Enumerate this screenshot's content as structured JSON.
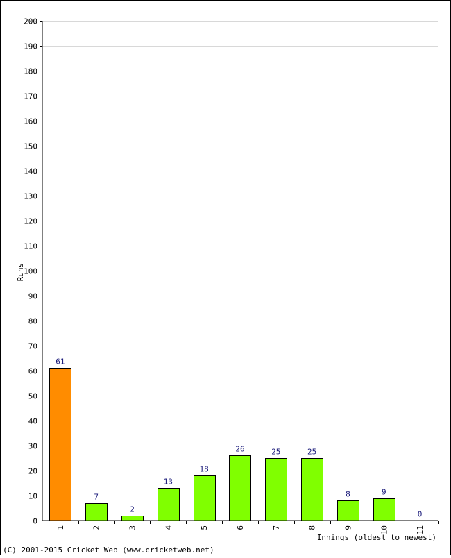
{
  "chart_data": {
    "type": "bar",
    "title": "",
    "xlabel": "Innings (oldest to newest)",
    "ylabel": "Runs",
    "ylim": [
      0,
      200
    ],
    "ytick_step": 10,
    "grid": true,
    "categories": [
      "1",
      "2",
      "3",
      "4",
      "5",
      "6",
      "7",
      "8",
      "9",
      "10",
      "11"
    ],
    "values": [
      61,
      7,
      2,
      13,
      18,
      26,
      25,
      25,
      8,
      9,
      0
    ],
    "highlight_index": 0,
    "colors": {
      "highlight": "#ff8c00",
      "bar": "#80ff00",
      "bar_border": "#000000",
      "grid": "#d8d8d8",
      "data_label": "#1a1a7a"
    }
  },
  "footer": {
    "copyright": "(C) 2001-2015 Cricket Web (www.cricketweb.net)"
  }
}
